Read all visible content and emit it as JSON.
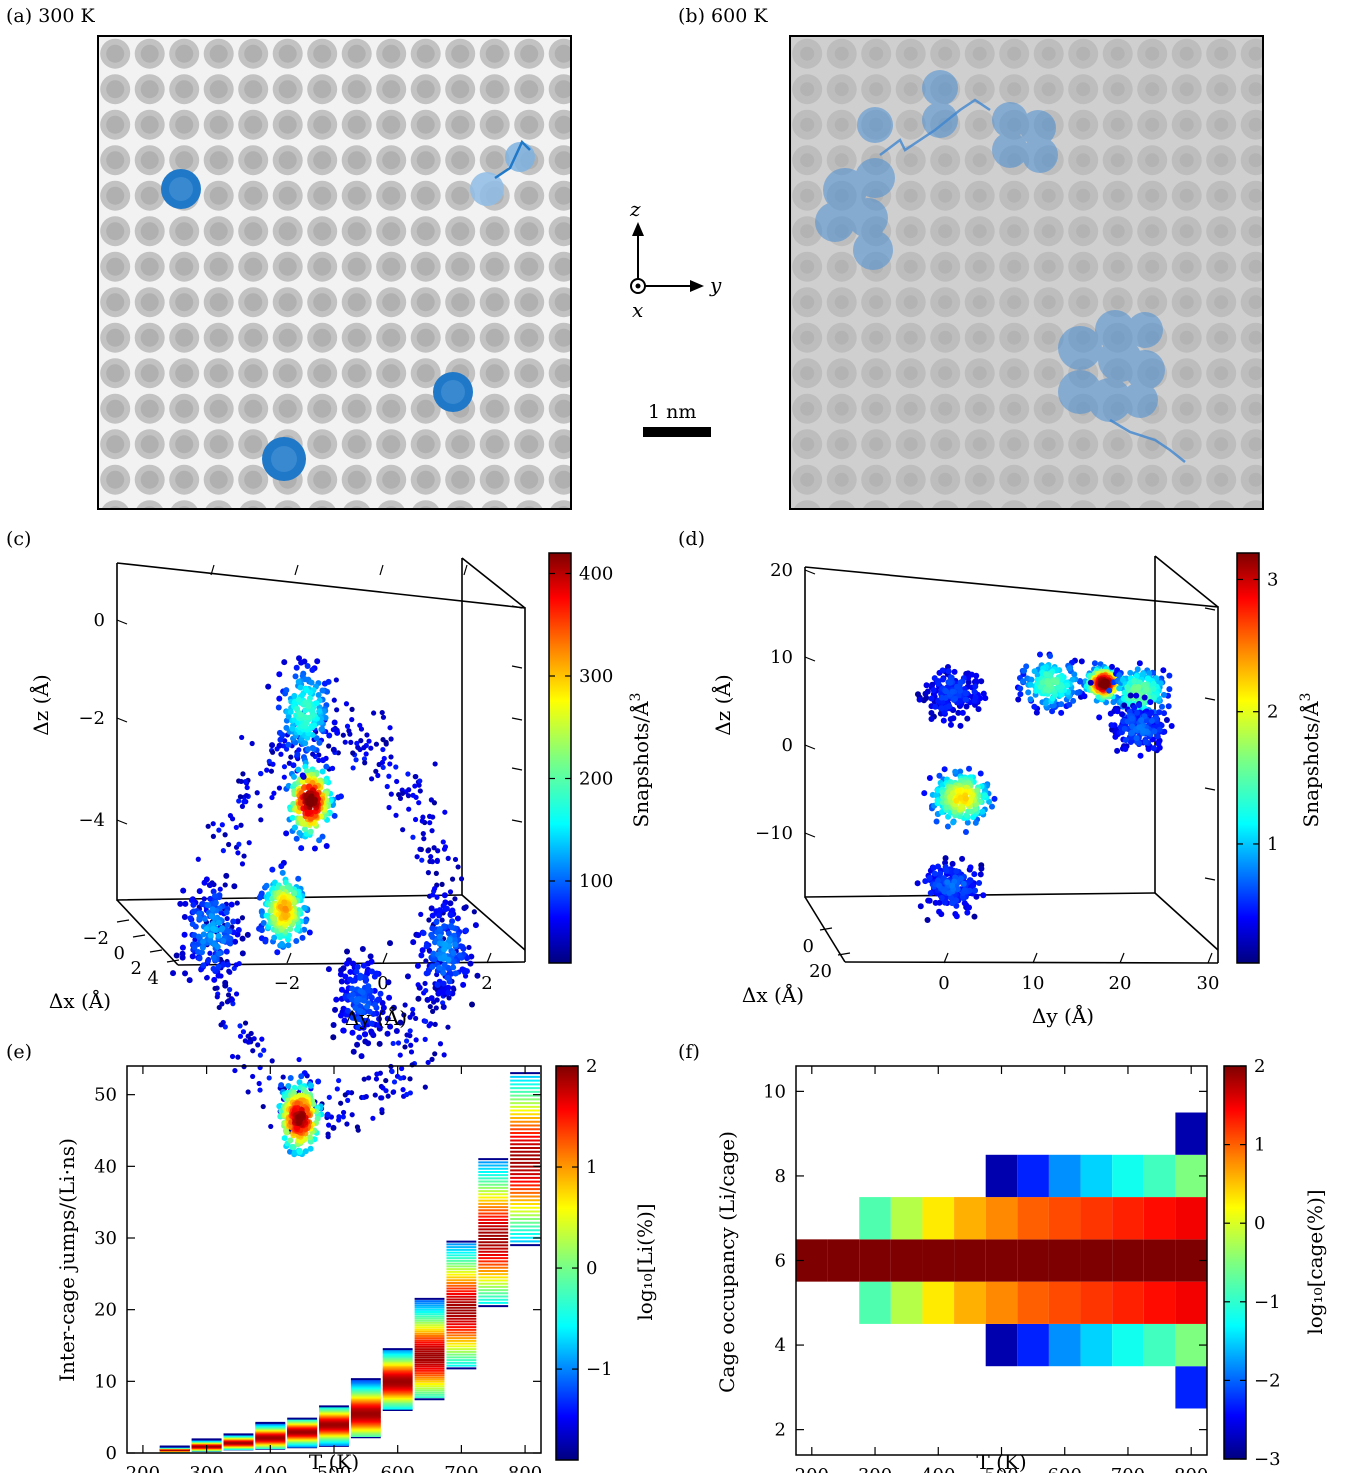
{
  "panels": {
    "a": {
      "label": "(a) 300 K"
    },
    "b": {
      "label": "(b) 600 K"
    },
    "c": {
      "label": "(c)"
    },
    "d": {
      "label": "(d)"
    },
    "e": {
      "label": "(e)"
    },
    "f": {
      "label": "(f)"
    }
  },
  "axes_indicator": {
    "z": "z",
    "y": "y",
    "x": "x"
  },
  "scale_bar": {
    "label": "1 nm"
  },
  "colormap": [
    "#00007f",
    "#0000ff",
    "#007fff",
    "#00ffff",
    "#7fff7f",
    "#ffff00",
    "#ff7f00",
    "#ff0000",
    "#7f0000"
  ],
  "chart_data": [
    {
      "panel": "c",
      "type": "scatter",
      "xlabel": "Δx (Å)",
      "ylabel": "Δy (Å)",
      "zlabel": "Δz (Å)",
      "x_ticks": [
        "−2",
        "0",
        "2",
        "4"
      ],
      "y_ticks": [
        "−2",
        "0",
        "2"
      ],
      "z_ticks": [
        "0",
        "−2",
        "−4"
      ],
      "colorbar": {
        "label": "Snapshots/Å",
        "label_sup": "3",
        "range": [
          20,
          420
        ],
        "ticks": [
          "100",
          "200",
          "300",
          "400"
        ]
      },
      "clusters": [
        {
          "y": -1.4,
          "z": -1.8,
          "density": 400
        },
        {
          "y": -1.9,
          "z": -2.9,
          "density": 280
        },
        {
          "y": -1.6,
          "z": -5.0,
          "density": 380
        },
        {
          "y": -1.5,
          "z": -0.9,
          "density": 150
        },
        {
          "y": -3.3,
          "z": -3.1,
          "density": 90
        },
        {
          "y": 1.2,
          "z": -3.3,
          "density": 80
        },
        {
          "y": -0.4,
          "z": -3.8,
          "density": 60
        }
      ]
    },
    {
      "panel": "d",
      "type": "scatter",
      "xlabel": "Δx (Å)",
      "ylabel": "Δy (Å)",
      "zlabel": "Δz (Å)",
      "x_ticks": [
        "0",
        "20"
      ],
      "y_ticks": [
        "0",
        "10",
        "20",
        "30"
      ],
      "z_ticks": [
        "20",
        "10",
        "0",
        "−10"
      ],
      "colorbar": {
        "label": "Snapshots/Å",
        "label_sup": "3",
        "range": [
          0.1,
          3.2
        ],
        "ticks": [
          "1",
          "2",
          "3"
        ]
      },
      "clusters": [
        {
          "y": 18,
          "z": 7,
          "density": 3.0
        },
        {
          "y": 2,
          "z": -6,
          "density": 1.9
        },
        {
          "y": 12,
          "z": 7,
          "density": 1.2
        },
        {
          "y": 22,
          "z": 6,
          "density": 1.3
        },
        {
          "y": 1,
          "z": 6,
          "density": 0.3
        },
        {
          "y": 1,
          "z": -16,
          "density": 0.4
        },
        {
          "y": 22,
          "z": 2,
          "density": 0.4
        }
      ]
    },
    {
      "panel": "e",
      "type": "heatmap",
      "xlabel": "T (K)",
      "ylabel": "Inter-cage jumps/(Li·ns)",
      "xlim": [
        175,
        825
      ],
      "ylim": [
        0,
        54
      ],
      "x_ticks": [
        200,
        300,
        400,
        500,
        600,
        700,
        800
      ],
      "y_ticks": [
        0,
        10,
        20,
        30,
        40,
        50
      ],
      "colorbar": {
        "label": "log₁₀[Li(%)]",
        "range": [
          -1.9,
          2
        ],
        "ticks": [
          "−1",
          "0",
          "1",
          "2"
        ]
      },
      "columns": [
        {
          "T": 250,
          "min": 0.2,
          "max": 0.9,
          "peak": 0.5
        },
        {
          "T": 300,
          "min": 0.3,
          "max": 1.9,
          "peak": 1.0
        },
        {
          "T": 350,
          "min": 0.5,
          "max": 2.6,
          "peak": 1.5
        },
        {
          "T": 400,
          "min": 0.6,
          "max": 4.2,
          "peak": 2.2
        },
        {
          "T": 450,
          "min": 0.8,
          "max": 4.8,
          "peak": 3.0
        },
        {
          "T": 500,
          "min": 1.0,
          "max": 6.5,
          "peak": 4.0
        },
        {
          "T": 550,
          "min": 2.2,
          "max": 10.3,
          "peak": 5.5
        },
        {
          "T": 600,
          "min": 6.0,
          "max": 14.5,
          "peak": 10.0
        },
        {
          "T": 650,
          "min": 7.5,
          "max": 21.5,
          "peak": 13.5
        },
        {
          "T": 700,
          "min": 11.8,
          "max": 29.5,
          "peak": 20.0
        },
        {
          "T": 750,
          "min": 20.5,
          "max": 41.0,
          "peak": 30.0
        },
        {
          "T": 800,
          "min": 29.0,
          "max": 53.0,
          "peak": 41.0
        }
      ]
    },
    {
      "panel": "f",
      "type": "heatmap",
      "xlabel": "T (K)",
      "ylabel": "Cage occupancy (Li/cage)",
      "xlim": [
        175,
        825
      ],
      "ylim": [
        1.4,
        10.6
      ],
      "x_ticks": [
        200,
        300,
        400,
        500,
        600,
        700,
        800
      ],
      "y_ticks": [
        2,
        4,
        6,
        8,
        10
      ],
      "colorbar": {
        "label": "log₁₀[cage(%)]",
        "range": [
          -3,
          2
        ],
        "ticks": [
          "−3",
          "−2",
          "−1",
          "0",
          "1",
          "2"
        ]
      },
      "temperatures": [
        200,
        250,
        300,
        350,
        400,
        450,
        500,
        550,
        600,
        650,
        700,
        750,
        800
      ],
      "rows": [
        {
          "occ": 3,
          "values": [
            null,
            null,
            null,
            null,
            null,
            null,
            null,
            null,
            null,
            null,
            null,
            null,
            -2.3
          ]
        },
        {
          "occ": 4,
          "values": [
            null,
            null,
            null,
            null,
            null,
            null,
            -2.8,
            -2.3,
            -1.8,
            -1.5,
            -1.2,
            -0.9,
            -0.5
          ]
        },
        {
          "occ": 5,
          "values": [
            null,
            null,
            -0.8,
            -0.2,
            0.3,
            0.6,
            0.8,
            1.0,
            1.1,
            1.2,
            1.3,
            1.4,
            1.5
          ]
        },
        {
          "occ": 6,
          "values": [
            2.0,
            2.0,
            2.0,
            2.0,
            2.0,
            2.0,
            2.0,
            2.0,
            2.0,
            2.0,
            2.0,
            2.0,
            2.0
          ]
        },
        {
          "occ": 7,
          "values": [
            null,
            null,
            -0.8,
            -0.2,
            0.3,
            0.6,
            0.8,
            1.0,
            1.1,
            1.2,
            1.3,
            1.4,
            1.5
          ]
        },
        {
          "occ": 8,
          "values": [
            null,
            null,
            null,
            null,
            null,
            null,
            -2.8,
            -2.3,
            -1.8,
            -1.5,
            -1.2,
            -0.9,
            -0.5
          ]
        },
        {
          "occ": 9,
          "values": [
            null,
            null,
            null,
            null,
            null,
            null,
            null,
            null,
            null,
            null,
            null,
            null,
            -2.8
          ]
        }
      ]
    }
  ]
}
